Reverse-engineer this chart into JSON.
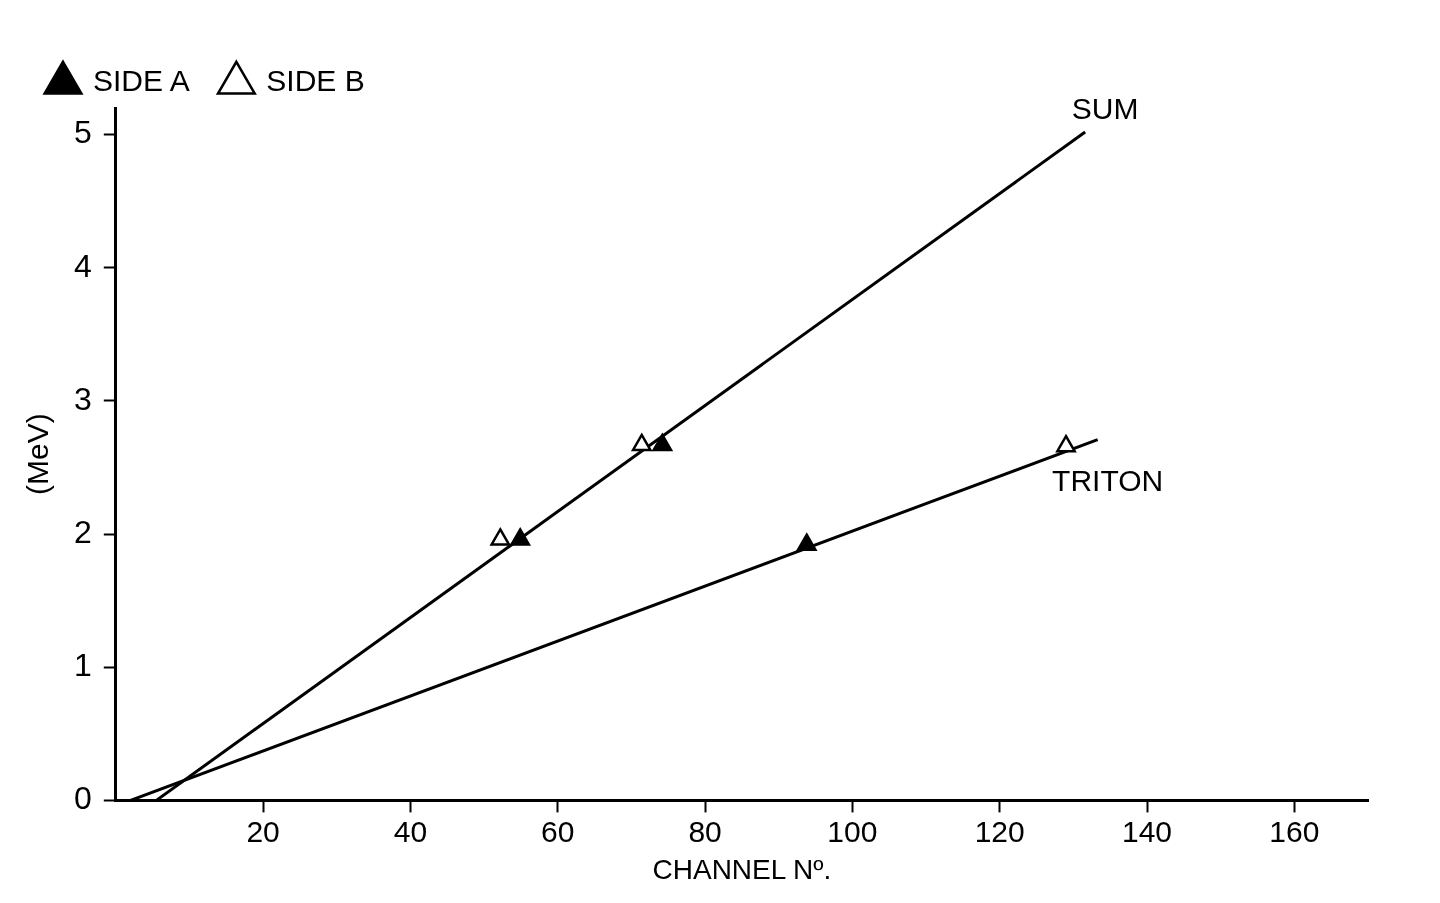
{
  "chart_data": {
    "type": "scatter",
    "xlabel": "CHANNEL Nº.",
    "ylabel": "(MeV)",
    "xlim": [
      0,
      170
    ],
    "xticks": [
      20,
      40,
      60,
      80,
      100,
      120,
      140,
      160
    ],
    "ylim": [
      0,
      5.2
    ],
    "yticks": [
      0,
      1,
      2,
      3,
      4,
      5
    ],
    "grid": false,
    "legend": "top left",
    "marker": "triangle",
    "series": [
      {
        "type": "line",
        "color": "#000000",
        "x": [
          5.5,
          131.6
        ],
        "values": [
          0,
          5.02
        ],
        "marker": "none"
      },
      {
        "type": "line",
        "color": "#000000",
        "x": [
          2,
          133.3
        ],
        "values": [
          0,
          2.71
        ],
        "marker": "none"
      },
      {
        "name": "SIDE A",
        "color": "#000000",
        "x": [
          54.9,
          74.2,
          93.8
        ],
        "values": [
          1.96,
          2.67,
          1.92
        ]
      },
      {
        "name": "SIDE B",
        "color": "#ffffff",
        "x": [
          52.2,
          71.4,
          129
        ],
        "values": [
          1.96,
          2.67,
          2.66
        ]
      }
    ],
    "annotations": [
      {
        "text": "SUM",
        "x": 131.6,
        "y": 5.02
      },
      {
        "text": "TRITON",
        "x": 133.3,
        "y": 2.71
      }
    ]
  }
}
